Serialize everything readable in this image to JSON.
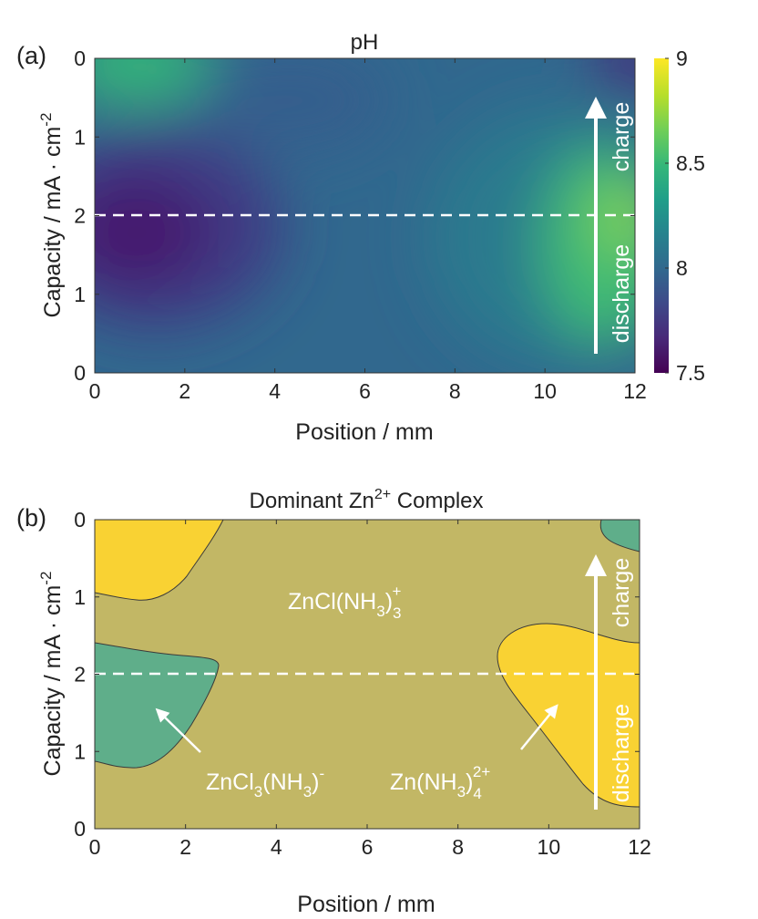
{
  "colors": {
    "viridis": [
      "#440154",
      "#482878",
      "#3e4989",
      "#31688e",
      "#26828e",
      "#1f9e89",
      "#35b779",
      "#6ece58",
      "#b5de2b",
      "#fde725"
    ],
    "olive_region": "#c2b765",
    "green_region": "#5fae8a",
    "yellow_region": "#f9d233",
    "arrow": "#ffffff",
    "boundary": "#3a3a3a"
  },
  "chart_data": [
    {
      "type": "heatmap",
      "panel_label": "(a)",
      "title": "pH",
      "xlabel": "Position  /  mm",
      "ylabel": "Capacity  /  mA · cm",
      "ylabel_sup": "-2",
      "xlim": [
        0,
        12
      ],
      "x_ticks": [
        "0",
        "2",
        "4",
        "6",
        "8",
        "10",
        "12"
      ],
      "y_ticks": [
        "0",
        "1",
        "2",
        "1",
        "0"
      ],
      "colorbar": {
        "range": [
          7.5,
          9
        ],
        "ticks": [
          "9",
          "8.5",
          "8",
          "7.5"
        ]
      },
      "field_points": [
        {
          "x": 0.8,
          "y_frac": 0.02,
          "pH": 8.55
        },
        {
          "x": 0.8,
          "y_frac": 0.5,
          "pH": 7.55
        },
        {
          "x": 11.8,
          "y_frac": 0.5,
          "pH": 8.65
        },
        {
          "x": 11.6,
          "y_frac": 0.85,
          "pH": 8.3
        },
        {
          "x": 11.9,
          "y_frac": 0.02,
          "pH": 7.6
        },
        {
          "x": 6.0,
          "y_frac": 0.5,
          "pH": 7.95
        }
      ],
      "annotations": {
        "charge": "charge",
        "discharge": "discharge"
      },
      "dashed_line_label_value": 2
    },
    {
      "type": "area",
      "panel_label": "(b)",
      "title_main": "Dominant Zn",
      "title_sup": "2+",
      "title_tail": " Complex",
      "xlabel": "Position /  mm",
      "ylabel": "Capacity  /  mA · cm",
      "ylabel_sup": "-2",
      "xlim": [
        0,
        12
      ],
      "x_ticks": [
        "0",
        "2",
        "4",
        "6",
        "8",
        "10",
        "12"
      ],
      "y_ticks": [
        "0",
        "1",
        "2",
        "1",
        "0"
      ],
      "regions": [
        {
          "name": "ZnCl(NH3)3+",
          "color": "olive"
        },
        {
          "name": "ZnCl3(NH3)-",
          "color": "green"
        },
        {
          "name": "Zn(NH3)4 2+",
          "color": "yellow"
        }
      ],
      "labels": {
        "zncl_nh3_3": {
          "main": "ZnCl(NH",
          "sub1": "3",
          "close": ")",
          "sub2": "3",
          "sup": "+"
        },
        "zncl3_nh3": {
          "main": "ZnCl",
          "sub1": "3",
          "mid": "(NH",
          "sub2": "3",
          "close": ")",
          "sup": "-"
        },
        "zn_nh3_4": {
          "main": "Zn(NH",
          "sub1": "3",
          "close": ")",
          "sub2": "4",
          "sup": "2+"
        }
      },
      "annotations": {
        "charge": "charge",
        "discharge": "discharge"
      }
    }
  ]
}
